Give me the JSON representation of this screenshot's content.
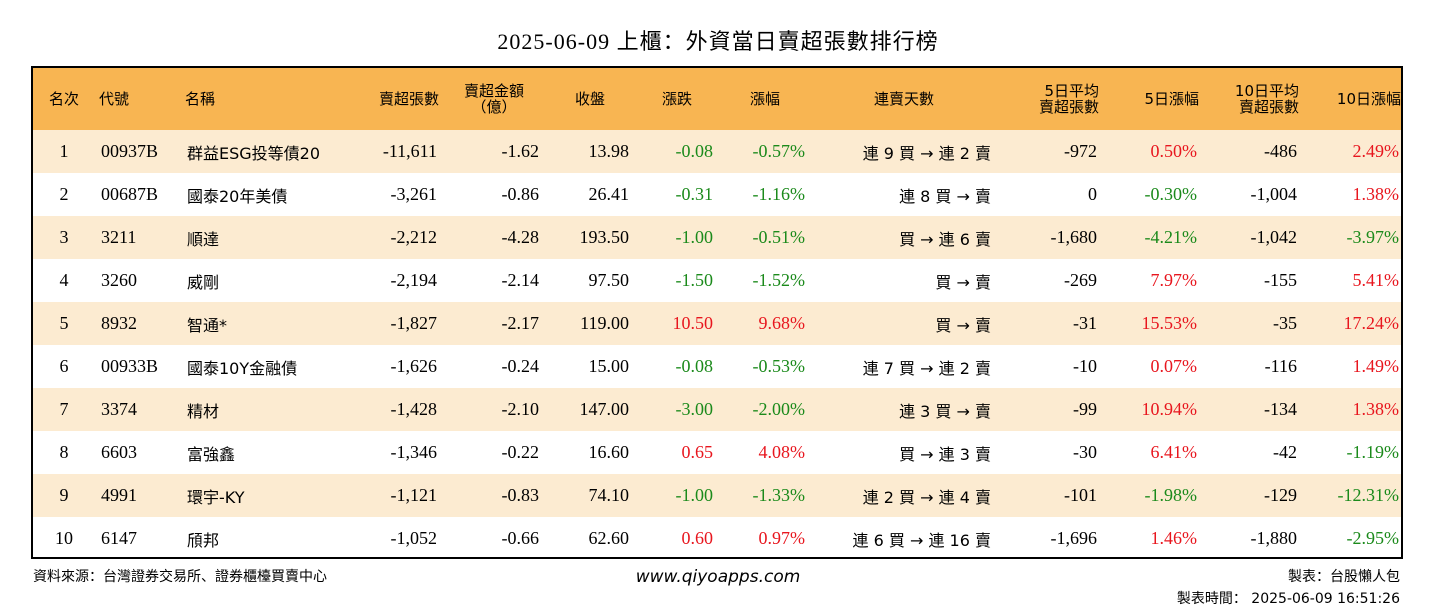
{
  "title": "2025-06-09 上櫃：外資當日賣超張數排行榜",
  "headers": [
    "名次",
    "代號",
    "名稱",
    "賣超張數",
    "賣超金額\n（億）",
    "收盤",
    "漲跌",
    "漲幅",
    "連賣天數",
    "5日平均\n賣超張數",
    "5日漲幅",
    "10日平均\n賣超張數",
    "10日漲幅"
  ],
  "rows": [
    {
      "rank": "1",
      "code": "00937B",
      "name": "群益ESG投等債20",
      "sell_vol": "-11,611",
      "sell_amt": "-1.62",
      "close": "13.98",
      "change": "-0.08",
      "pct": "-0.57%",
      "streak": "連 9 買 → 連 2 賣",
      "avg5": "-972",
      "pct5": "0.50%",
      "avg10": "-486",
      "pct10": "2.49%"
    },
    {
      "rank": "2",
      "code": "00687B",
      "name": "國泰20年美債",
      "sell_vol": "-3,261",
      "sell_amt": "-0.86",
      "close": "26.41",
      "change": "-0.31",
      "pct": "-1.16%",
      "streak": "連 8 買 → 賣",
      "avg5": "0",
      "pct5": "-0.30%",
      "avg10": "-1,004",
      "pct10": "1.38%"
    },
    {
      "rank": "3",
      "code": "3211",
      "name": "順達",
      "sell_vol": "-2,212",
      "sell_amt": "-4.28",
      "close": "193.50",
      "change": "-1.00",
      "pct": "-0.51%",
      "streak": "買 → 連 6 賣",
      "avg5": "-1,680",
      "pct5": "-4.21%",
      "avg10": "-1,042",
      "pct10": "-3.97%"
    },
    {
      "rank": "4",
      "code": "3260",
      "name": "威剛",
      "sell_vol": "-2,194",
      "sell_amt": "-2.14",
      "close": "97.50",
      "change": "-1.50",
      "pct": "-1.52%",
      "streak": "買 → 賣",
      "avg5": "-269",
      "pct5": "7.97%",
      "avg10": "-155",
      "pct10": "5.41%"
    },
    {
      "rank": "5",
      "code": "8932",
      "name": "智通*",
      "sell_vol": "-1,827",
      "sell_amt": "-2.17",
      "close": "119.00",
      "change": "10.50",
      "pct": "9.68%",
      "streak": "買 → 賣",
      "avg5": "-31",
      "pct5": "15.53%",
      "avg10": "-35",
      "pct10": "17.24%"
    },
    {
      "rank": "6",
      "code": "00933B",
      "name": "國泰10Y金融債",
      "sell_vol": "-1,626",
      "sell_amt": "-0.24",
      "close": "15.00",
      "change": "-0.08",
      "pct": "-0.53%",
      "streak": "連 7 買 → 連 2 賣",
      "avg5": "-10",
      "pct5": "0.07%",
      "avg10": "-116",
      "pct10": "1.49%"
    },
    {
      "rank": "7",
      "code": "3374",
      "name": "精材",
      "sell_vol": "-1,428",
      "sell_amt": "-2.10",
      "close": "147.00",
      "change": "-3.00",
      "pct": "-2.00%",
      "streak": "連 3 買 → 賣",
      "avg5": "-99",
      "pct5": "10.94%",
      "avg10": "-134",
      "pct10": "1.38%"
    },
    {
      "rank": "8",
      "code": "6603",
      "name": "富強鑫",
      "sell_vol": "-1,346",
      "sell_amt": "-0.22",
      "close": "16.60",
      "change": "0.65",
      "pct": "4.08%",
      "streak": "買 → 連 3 賣",
      "avg5": "-30",
      "pct5": "6.41%",
      "avg10": "-42",
      "pct10": "-1.19%"
    },
    {
      "rank": "9",
      "code": "4991",
      "name": "環宇-KY",
      "sell_vol": "-1,121",
      "sell_amt": "-0.83",
      "close": "74.10",
      "change": "-1.00",
      "pct": "-1.33%",
      "streak": "連 2 買 → 連 4 賣",
      "avg5": "-101",
      "pct5": "-1.98%",
      "avg10": "-129",
      "pct10": "-12.31%"
    },
    {
      "rank": "10",
      "code": "6147",
      "name": "頎邦",
      "sell_vol": "-1,052",
      "sell_amt": "-0.66",
      "close": "62.60",
      "change": "0.60",
      "pct": "0.97%",
      "streak": "連 6 買 → 連 16 賣",
      "avg5": "-1,696",
      "pct5": "1.46%",
      "avg10": "-1,880",
      "pct10": "-2.95%"
    }
  ],
  "colors": {
    "header_bg": "#f8b552",
    "stripe_bg": "#fcebd1",
    "up": "#e8161e",
    "down": "#1b8a1b"
  },
  "footer": {
    "source": "資料來源：台灣證券交易所、證券櫃檯買賣中心",
    "url": "www.qiyoapps.com",
    "maker": "製表：台股懶人包",
    "time": "製表時間： 2025-06-09 16:51:26"
  }
}
